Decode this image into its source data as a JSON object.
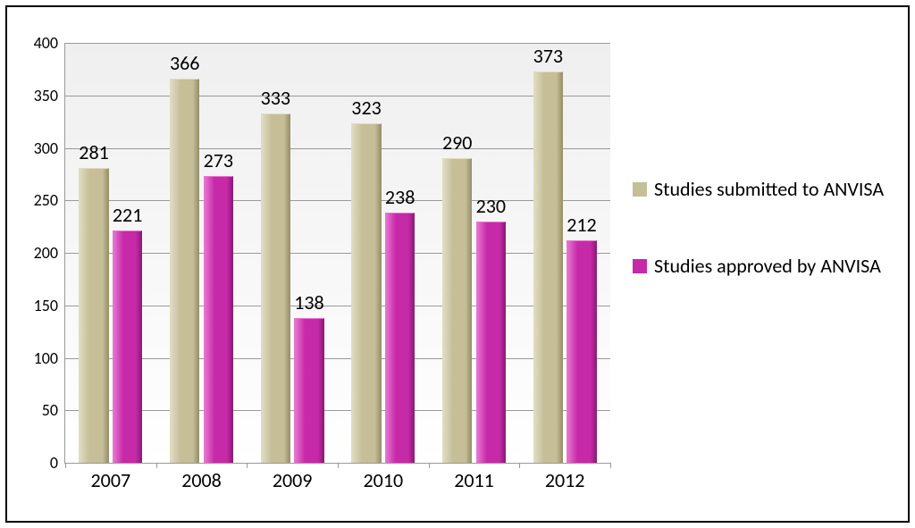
{
  "chart": {
    "type": "bar",
    "background_color": "#ffffff",
    "plot_bg_gradient": [
      "#efefef",
      "#ffffff"
    ],
    "grid_color": "#9a9a9a",
    "axis_color": "#9a9a9a",
    "ylim": [
      0,
      400
    ],
    "ytick_step": 50,
    "yticks": [
      0,
      50,
      100,
      150,
      200,
      250,
      300,
      350,
      400
    ],
    "categories": [
      "2007",
      "2008",
      "2009",
      "2010",
      "2011",
      "2012"
    ],
    "series": [
      {
        "name": "Studies submitted to ANVISA",
        "color": "#c5be97",
        "highlight": "#e0dcc2",
        "shadow": "#9a936f",
        "values": [
          281,
          366,
          333,
          323,
          290,
          373
        ]
      },
      {
        "name": "Studies approved by ANVISA",
        "color": "#c72aa8",
        "highlight": "#e676d0",
        "shadow": "#8f1d79",
        "values": [
          221,
          273,
          138,
          238,
          230,
          212
        ]
      }
    ],
    "bar_width": 0.33,
    "label_fontsize": 22,
    "tick_fontsize": 18,
    "legend_fontsize": 22
  }
}
